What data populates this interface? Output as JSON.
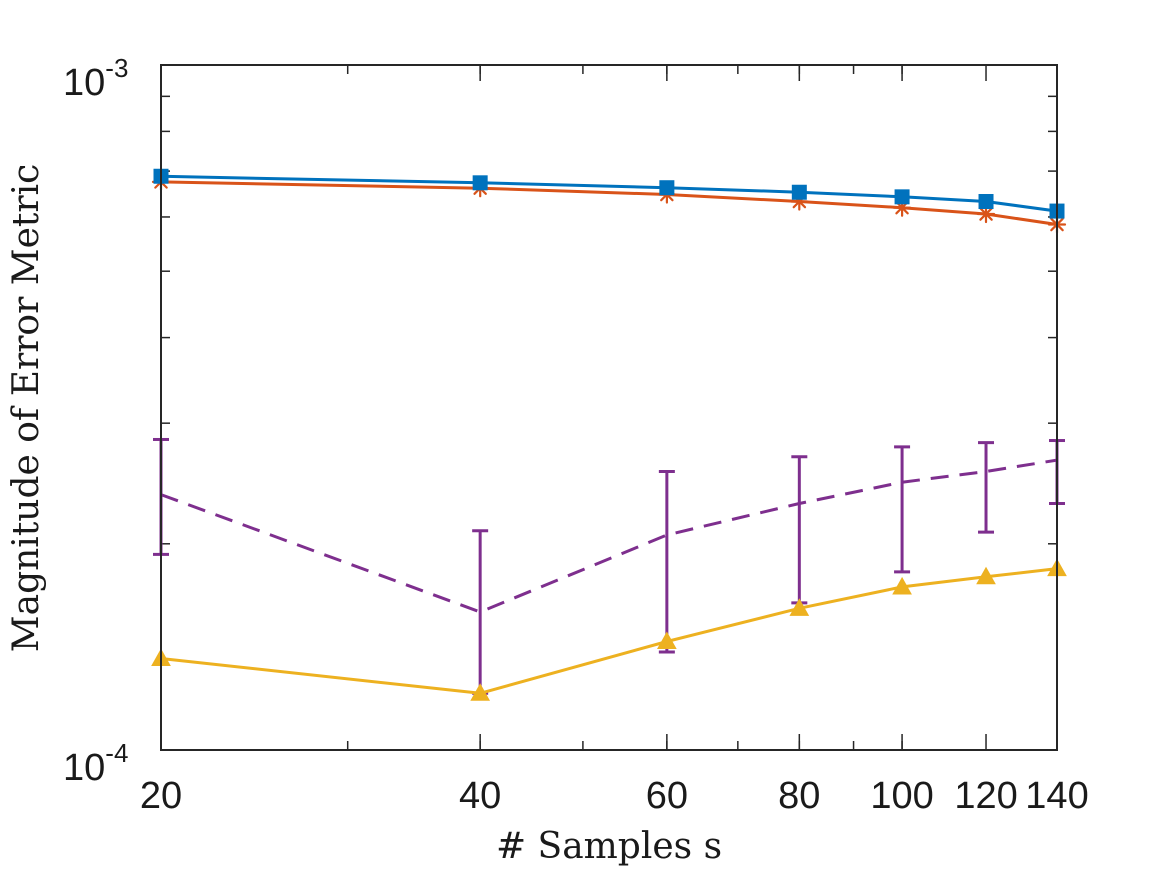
{
  "chart_data": {
    "type": "line",
    "xscale": "log",
    "yscale": "log",
    "xlabel": "# Samples s",
    "ylabel": "Magnitude of Error Metric",
    "xlim": [
      20,
      140
    ],
    "ylim": [
      0.0001,
      0.001
    ],
    "grid": false,
    "x": [
      20,
      40,
      60,
      80,
      100,
      120,
      140
    ],
    "x_tick_labels": [
      "20",
      "40",
      "60",
      "80",
      "100",
      "120",
      "140"
    ],
    "y_ticks": [
      {
        "value": 0.001,
        "base": "10",
        "exp": "-3"
      },
      {
        "value": 0.0001,
        "base": "10",
        "exp": "-4"
      }
    ],
    "series": [
      {
        "name": "series-blue-square",
        "color": "#0072BD",
        "marker": "square",
        "linestyle": "solid",
        "values": [
          0.000688,
          0.000673,
          0.000662,
          0.000652,
          0.000642,
          0.000632,
          0.000612
        ]
      },
      {
        "name": "series-red-asterisk",
        "color": "#D95319",
        "marker": "asterisk",
        "linestyle": "solid",
        "values": [
          0.000675,
          0.000661,
          0.000647,
          0.000632,
          0.000619,
          0.000606,
          0.000585
        ]
      },
      {
        "name": "series-yellow-triangle",
        "color": "#EDB120",
        "marker": "triangle",
        "linestyle": "solid",
        "values": [
          0.000136,
          0.000121,
          0.000144,
          0.000161,
          0.000173,
          0.000179,
          0.000184
        ]
      },
      {
        "name": "series-purple-dashed",
        "color": "#7E2F8E",
        "marker": "none",
        "linestyle": "dashed",
        "values": [
          0.000236,
          0.000159,
          0.000206,
          0.000229,
          0.000246,
          0.000255,
          0.000265
        ],
        "error_low": [
          0.000193,
          0.000121,
          0.000139,
          0.000164,
          0.000182,
          0.000208,
          0.000229
        ],
        "error_high": [
          0.000284,
          0.000209,
          0.000255,
          0.000268,
          0.000277,
          0.000281,
          0.000283
        ]
      }
    ]
  }
}
